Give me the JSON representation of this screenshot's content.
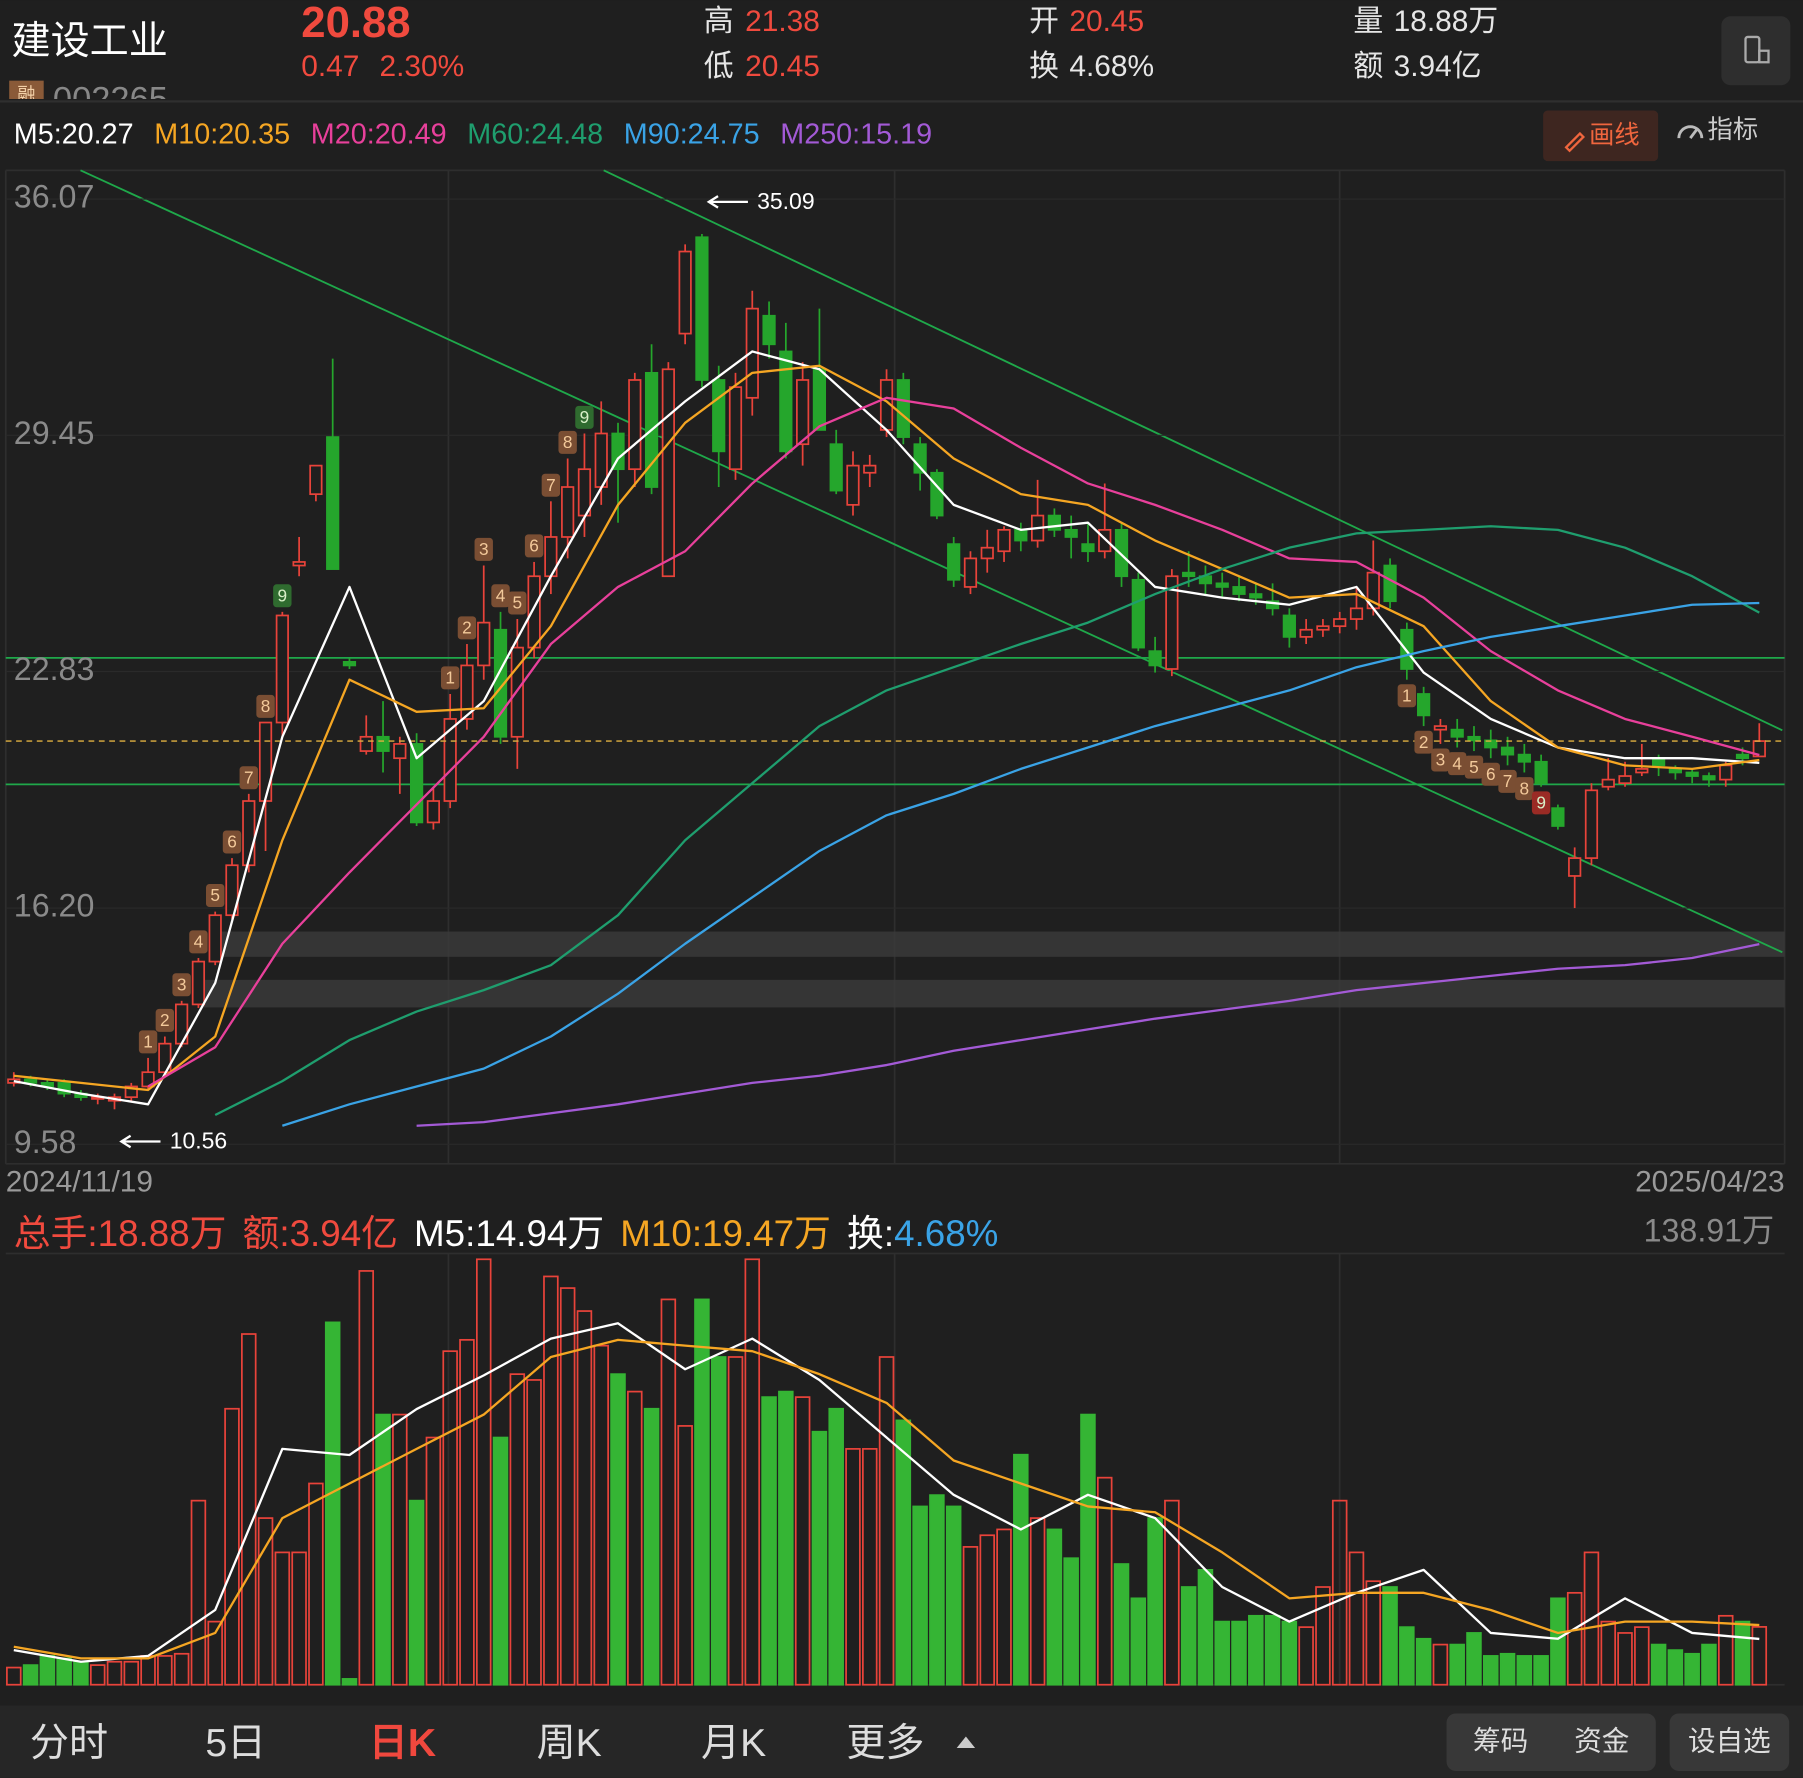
{
  "header": {
    "name": "建设工业",
    "badge": "融",
    "code": "002265",
    "price": "20.88",
    "change": "0.47",
    "change_pct": "2.30%",
    "stats": [
      {
        "name": "高",
        "value": "21.38"
      },
      {
        "name": "低",
        "value": "20.45"
      },
      {
        "name": "开",
        "value": "20.45"
      },
      {
        "name": "换",
        "value": "4.68%"
      },
      {
        "name": "量",
        "value": "18.88万"
      },
      {
        "name": "额",
        "value": "3.94亿"
      }
    ]
  },
  "separator": ":",
  "toolbar": [
    "画线",
    "指标"
  ],
  "tabs": [
    "分时",
    "5日",
    "日K",
    "周K",
    "月K",
    "更多"
  ],
  "active_tab": 2,
  "buttons": [
    "筹码",
    "资金",
    "设自选"
  ],
  "chart_data": [
    {
      "type": "candlestick",
      "colors": {
        "up": "#e8433a",
        "down": "#25a62c"
      },
      "ylim": [
        9.58,
        36.07
      ],
      "yticks": [
        36.07,
        29.45,
        22.83,
        {
          "value": 16.2,
          "label": "16.20"
        },
        9.58
      ],
      "xticks": [
        {
          "value": 0,
          "label": "2024/11/19"
        },
        {
          "value": 104,
          "label": "2025/04/23"
        }
      ],
      "grid": true,
      "last_price": 20.88,
      "annotations": [
        {
          "candle": 41,
          "value": 35.09,
          "side": "above"
        },
        {
          "candle": 6,
          "value": 10.56,
          "side": "below"
        }
      ],
      "candles": [
        [
          11.3,
          11.6,
          11.2,
          11.4
        ],
        [
          11.4,
          11.5,
          11.2,
          11.3
        ],
        [
          11.3,
          11.4,
          11.1,
          11.2
        ],
        [
          11.3,
          11.4,
          10.9,
          11.0
        ],
        [
          11.0,
          11.1,
          10.8,
          10.9
        ],
        [
          10.9,
          11.0,
          10.7,
          10.9
        ],
        [
          10.8,
          11.0,
          10.56,
          10.9
        ],
        [
          10.9,
          11.3,
          10.8,
          11.2
        ],
        [
          11.2,
          12.0,
          11.1,
          11.6
        ],
        [
          11.6,
          12.6,
          11.5,
          12.4
        ],
        [
          12.4,
          13.6,
          12.3,
          13.5
        ],
        [
          13.5,
          14.8,
          13.4,
          14.7
        ],
        [
          14.7,
          16.1,
          14.6,
          16.0
        ],
        [
          16.0,
          17.6,
          15.9,
          17.4
        ],
        [
          17.4,
          19.4,
          17.2,
          19.2
        ],
        [
          19.2,
          21.4,
          17.8,
          21.4
        ],
        [
          21.4,
          24.5,
          21.0,
          24.4
        ],
        [
          25.8,
          26.6,
          25.5,
          25.9
        ],
        [
          27.8,
          28.6,
          27.6,
          28.6
        ],
        [
          29.4,
          31.6,
          25.7,
          25.7
        ],
        [
          23.1,
          23.2,
          22.9,
          23.0
        ],
        [
          20.6,
          21.6,
          20.5,
          21.0
        ],
        [
          21.0,
          22.0,
          20.0,
          20.6
        ],
        [
          20.4,
          21.0,
          19.4,
          20.8
        ],
        [
          20.8,
          21.1,
          18.5,
          18.6
        ],
        [
          18.6,
          19.6,
          18.4,
          19.2
        ],
        [
          19.2,
          22.2,
          19.0,
          21.5
        ],
        [
          21.5,
          23.6,
          21.2,
          23.0
        ],
        [
          23.0,
          25.8,
          22.6,
          24.2
        ],
        [
          24.0,
          24.5,
          20.8,
          21.0
        ],
        [
          21.0,
          24.3,
          20.1,
          23.5
        ],
        [
          23.5,
          25.9,
          23.2,
          25.5
        ],
        [
          25.5,
          27.6,
          25.0,
          26.6
        ],
        [
          26.6,
          28.8,
          26.0,
          28.0
        ],
        [
          27.2,
          29.5,
          26.6,
          28.5
        ],
        [
          28.0,
          30.4,
          27.5,
          29.5
        ],
        [
          29.5,
          29.8,
          27.0,
          28.5
        ],
        [
          28.5,
          31.2,
          28.0,
          31.0
        ],
        [
          31.2,
          32.0,
          27.8,
          28.0
        ],
        [
          25.5,
          31.5,
          25.5,
          31.3
        ],
        [
          32.3,
          34.8,
          32.0,
          34.6
        ],
        [
          35.0,
          35.09,
          30.8,
          31.0
        ],
        [
          31.0,
          31.4,
          28.0,
          29.0
        ],
        [
          28.5,
          31.2,
          28.2,
          30.8
        ],
        [
          30.5,
          33.5,
          30.0,
          33.0
        ],
        [
          32.8,
          33.2,
          31.6,
          32.0
        ],
        [
          31.8,
          32.6,
          28.8,
          29.0
        ],
        [
          29.2,
          31.5,
          28.6,
          31.0
        ],
        [
          31.3,
          33.0,
          29.6,
          29.6
        ],
        [
          29.2,
          29.6,
          27.8,
          27.9
        ],
        [
          27.5,
          29.0,
          27.2,
          28.6
        ],
        [
          28.4,
          28.9,
          28.0,
          28.6
        ],
        [
          29.6,
          31.3,
          29.4,
          31.0
        ],
        [
          31.0,
          31.2,
          29.2,
          29.4
        ],
        [
          29.2,
          29.4,
          27.9,
          28.4
        ],
        [
          28.4,
          28.5,
          27.1,
          27.2
        ],
        [
          26.4,
          26.6,
          25.2,
          25.4
        ],
        [
          25.2,
          26.2,
          25.0,
          26.0
        ],
        [
          26.0,
          26.8,
          25.6,
          26.3
        ],
        [
          26.2,
          26.9,
          25.9,
          26.8
        ],
        [
          26.8,
          27.0,
          26.2,
          26.5
        ],
        [
          26.5,
          28.2,
          26.3,
          27.2
        ],
        [
          27.2,
          27.4,
          26.6,
          26.8
        ],
        [
          26.8,
          27.2,
          26.0,
          26.6
        ],
        [
          26.4,
          27.0,
          25.9,
          26.2
        ],
        [
          26.2,
          28.1,
          26.0,
          26.8
        ],
        [
          26.8,
          27.0,
          25.2,
          25.5
        ],
        [
          25.4,
          25.6,
          23.4,
          23.5
        ],
        [
          23.4,
          23.8,
          22.8,
          23.0
        ],
        [
          22.9,
          25.7,
          22.7,
          25.5
        ],
        [
          25.6,
          26.2,
          25.2,
          25.5
        ],
        [
          25.5,
          25.8,
          25.0,
          25.3
        ],
        [
          25.3,
          25.6,
          24.9,
          25.2
        ],
        [
          25.2,
          25.5,
          24.8,
          25.0
        ],
        [
          25.0,
          25.3,
          24.7,
          24.9
        ],
        [
          24.8,
          25.3,
          24.4,
          24.6
        ],
        [
          24.4,
          24.6,
          23.5,
          23.8
        ],
        [
          23.8,
          24.3,
          23.6,
          24.0
        ],
        [
          24.0,
          24.3,
          23.8,
          24.1
        ],
        [
          24.1,
          24.5,
          23.9,
          24.3
        ],
        [
          24.3,
          25.2,
          24.0,
          24.6
        ],
        [
          24.6,
          26.5,
          24.4,
          25.6
        ],
        [
          25.8,
          26.0,
          24.6,
          24.8
        ],
        [
          24.0,
          24.2,
          22.6,
          22.9
        ],
        [
          22.2,
          22.4,
          21.3,
          21.6
        ],
        [
          21.2,
          21.5,
          20.8,
          21.3
        ],
        [
          21.2,
          21.5,
          20.7,
          21.0
        ],
        [
          21.0,
          21.3,
          20.6,
          20.9
        ],
        [
          20.9,
          21.2,
          20.4,
          20.7
        ],
        [
          20.7,
          21.0,
          20.2,
          20.5
        ],
        [
          20.5,
          20.8,
          20.0,
          20.3
        ],
        [
          20.3,
          20.5,
          19.6,
          19.7
        ],
        [
          19.0,
          19.1,
          18.4,
          18.5
        ],
        [
          17.1,
          17.9,
          16.2,
          17.6
        ],
        [
          17.6,
          19.7,
          17.4,
          19.5
        ],
        [
          19.6,
          20.4,
          19.5,
          19.8
        ],
        [
          19.7,
          20.3,
          19.6,
          19.9
        ],
        [
          20.0,
          20.8,
          19.9,
          20.1
        ],
        [
          20.4,
          20.5,
          19.9,
          20.2
        ],
        [
          20.1,
          20.2,
          19.8,
          20.0
        ],
        [
          20.0,
          20.1,
          19.7,
          19.9
        ],
        [
          19.9,
          20.0,
          19.6,
          19.8
        ],
        [
          19.8,
          20.3,
          19.6,
          20.2
        ],
        [
          20.5,
          20.7,
          20.2,
          20.4
        ],
        [
          20.45,
          21.38,
          20.45,
          20.88
        ]
      ],
      "sequences": [
        {
          "start": 8,
          "side": "above",
          "color": "#2f6b2f",
          "labels": [
            1,
            2,
            3,
            4,
            5,
            6,
            7,
            8,
            9
          ]
        },
        {
          "start": 26,
          "side": "above",
          "color": "#2f6b2f",
          "labels": [
            1,
            2,
            3,
            4,
            5,
            6,
            7,
            8,
            9
          ]
        },
        {
          "start": 83,
          "side": "below",
          "color": "#9a2b25",
          "labels": [
            1,
            2,
            3,
            4,
            5,
            6,
            7,
            8,
            9
          ]
        }
      ],
      "ma_x": [
        0,
        4,
        8,
        12,
        16,
        20,
        24,
        28,
        32,
        36,
        40,
        44,
        48,
        52,
        56,
        60,
        64,
        68,
        72,
        76,
        80,
        84,
        88,
        92,
        96,
        100,
        104
      ],
      "series": [
        {
          "name": "M5",
          "legend_value": "20.27",
          "color": "#ffffff",
          "values": [
            11.35,
            11.0,
            10.7,
            14.1,
            21.0,
            25.2,
            20.4,
            22.0,
            25.5,
            28.8,
            30.4,
            31.8,
            31.3,
            29.6,
            27.5,
            26.8,
            27.0,
            25.2,
            24.9,
            24.7,
            25.2,
            22.8,
            21.5,
            20.7,
            20.4,
            20.4,
            20.27
          ]
        },
        {
          "name": "M10",
          "legend_value": "20.35",
          "color": "#f5a623",
          "values": [
            11.5,
            11.3,
            11.1,
            12.6,
            18.1,
            22.6,
            21.7,
            21.8,
            24.1,
            27.5,
            29.8,
            31.2,
            31.4,
            30.4,
            28.8,
            27.8,
            27.5,
            26.5,
            25.7,
            24.9,
            25.0,
            24.1,
            22.0,
            20.7,
            20.2,
            20.1,
            20.35
          ]
        },
        {
          "name": "M20",
          "legend_value": "20.49",
          "color": "#e8409b",
          "values": [
            null,
            null,
            11.2,
            12.3,
            15.2,
            17.2,
            19.1,
            21.0,
            23.6,
            25.2,
            26.2,
            28.1,
            29.7,
            30.5,
            30.2,
            29.1,
            28.1,
            27.5,
            26.8,
            26.0,
            25.9,
            24.9,
            23.4,
            22.3,
            21.5,
            21.0,
            20.49
          ]
        },
        {
          "name": "M60",
          "legend_value": "24.48",
          "color": "#1f9e6e",
          "values": [
            null,
            null,
            null,
            10.4,
            11.35,
            12.5,
            13.3,
            13.9,
            14.6,
            16.0,
            18.1,
            19.7,
            21.3,
            22.3,
            22.95,
            23.6,
            24.2,
            25.0,
            25.7,
            26.3,
            26.7,
            26.8,
            26.9,
            26.8,
            26.3,
            25.5,
            24.48
          ]
        },
        {
          "name": "M90",
          "legend_value": "24.75",
          "color": "#3aa3e6",
          "values": [
            null,
            null,
            null,
            null,
            10.1,
            10.7,
            11.2,
            11.7,
            12.6,
            13.8,
            15.2,
            16.5,
            17.8,
            18.8,
            19.4,
            20.1,
            20.7,
            21.3,
            21.8,
            22.3,
            22.95,
            23.4,
            23.8,
            24.1,
            24.4,
            24.7,
            24.75
          ]
        },
        {
          "name": "M250",
          "legend_value": "15.19",
          "color": "#a35ad6",
          "values": [
            null,
            null,
            null,
            null,
            null,
            null,
            10.1,
            10.2,
            10.45,
            10.7,
            11.0,
            11.3,
            11.5,
            11.8,
            12.2,
            12.5,
            12.8,
            13.1,
            13.35,
            13.6,
            13.9,
            14.1,
            14.3,
            14.5,
            14.6,
            14.8,
            15.19
          ]
        }
      ]
    },
    {
      "type": "bar",
      "ylim": [
        0,
        138.91
      ],
      "yticks": [
        {
          "value": 138.91,
          "label": "138.91万"
        }
      ],
      "totals": [
        {
          "name": "总手",
          "value": "18.88万"
        },
        {
          "name": "额",
          "value": "3.94亿"
        }
      ],
      "turnover": {
        "name": "换",
        "value": "4.68%"
      },
      "values": [
        5.6,
        6.4,
        9.4,
        8.6,
        7.5,
        6.4,
        7.5,
        7.5,
        9.4,
        9.4,
        10.1,
        60.1,
        20.6,
        90.1,
        114.5,
        54.4,
        43.2,
        43.2,
        65.7,
        118.3,
        1.9,
        135.1,
        88.2,
        88.2,
        60.1,
        80.7,
        108.9,
        112.6,
        138.9,
        80.7,
        101.4,
        99.5,
        133.3,
        129.5,
        122.0,
        110.7,
        101.4,
        95.7,
        90.1,
        125.8,
        84.5,
        125.8,
        107.0,
        107.0,
        138.9,
        93.9,
        95.7,
        93.9,
        82.6,
        90.1,
        77.0,
        77.0,
        107.0,
        86.3,
        58.2,
        61.9,
        58.2,
        45.0,
        48.8,
        50.7,
        75.1,
        54.4,
        50.7,
        41.3,
        88.2,
        67.6,
        39.4,
        28.2,
        54.4,
        60.1,
        31.9,
        37.5,
        20.6,
        20.6,
        22.5,
        22.5,
        20.6,
        18.8,
        31.9,
        60.1,
        43.2,
        33.8,
        31.9,
        18.8,
        15.0,
        13.1,
        13.1,
        16.9,
        9.4,
        10.1,
        9.4,
        9.4,
        28.2,
        30.0,
        43.2,
        20.6,
        16.9,
        18.8,
        13.1,
        11.3,
        10.1,
        13.1,
        22.5,
        20.6,
        18.88
      ],
      "series": [
        {
          "name": "M5",
          "legend_value": "14.94万",
          "color": "#ffffff",
          "values": [
            11.3,
            7.5,
            9.4,
            24.4,
            77.0,
            75.0,
            90.0,
            101.0,
            113.0,
            118.0,
            103.0,
            113.0,
            99.5,
            80.7,
            62.0,
            50.7,
            62.0,
            54.4,
            31.9,
            20.6,
            30.0,
            37.5,
            16.9,
            15.0,
            28.2,
            16.9,
            14.94
          ]
        },
        {
          "name": "M10",
          "legend_value": "19.47万",
          "color": "#f5a623",
          "values": [
            12.4,
            8.6,
            8.6,
            16.9,
            54.4,
            65.7,
            77.0,
            88.2,
            107.0,
            112.6,
            110.7,
            108.9,
            101.4,
            92.0,
            73.2,
            65.7,
            58.2,
            56.3,
            43.2,
            28.2,
            30.0,
            30.0,
            24.4,
            16.9,
            20.6,
            20.6,
            19.47
          ]
        }
      ]
    }
  ]
}
